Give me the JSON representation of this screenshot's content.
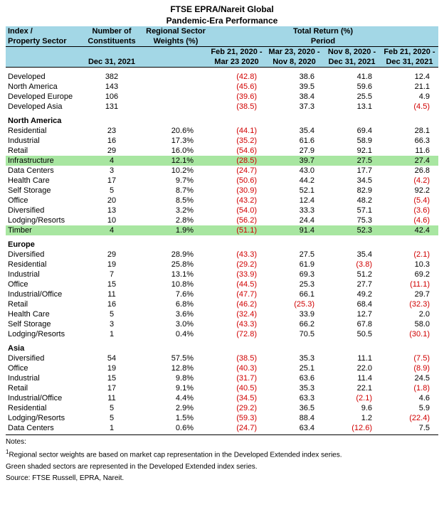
{
  "title_line1": "FTSE EPRA/Nareit Global",
  "title_line2": "Pandemic-Era Performance",
  "colors": {
    "header_bg": "#a3d7e6",
    "highlight_bg": "#a8e6a1",
    "negative_text": "#d00000",
    "text": "#000000",
    "background": "#ffffff",
    "border": "#000000"
  },
  "header": {
    "col0_l1": "Index /",
    "col0_l2": "Property Sector",
    "col1_l1": "Number of",
    "col1_l2": "Constituents",
    "col1_l3": "Dec 31, 2021",
    "col2_l1": "Regional Sector",
    "col2_l2": "Weights (%)",
    "tr_l1": "Total Return (%)",
    "tr_l2": "Period",
    "p1a": "Feb 21, 2020 -",
    "p1b": "Mar 23 2020",
    "p2a": "Mar 23, 2020 -",
    "p2b": "Nov 8, 2020",
    "p3a": "Nov 8, 2020 -",
    "p3b": "Dec 31, 2021",
    "p4a": "Feb 21, 2020 -",
    "p4b": "Dec 31, 2021"
  },
  "groups": [
    {
      "label": null,
      "rows": [
        {
          "name": "Developed",
          "n": "382",
          "w": "",
          "hl": false,
          "p": [
            {
              "v": "(42.8)",
              "neg": true
            },
            {
              "v": "38.6",
              "neg": false
            },
            {
              "v": "41.8",
              "neg": false
            },
            {
              "v": "12.4",
              "neg": false
            }
          ]
        },
        {
          "name": "North America",
          "n": "143",
          "w": "",
          "hl": false,
          "p": [
            {
              "v": "(45.6)",
              "neg": true
            },
            {
              "v": "39.5",
              "neg": false
            },
            {
              "v": "59.6",
              "neg": false
            },
            {
              "v": "21.1",
              "neg": false
            }
          ]
        },
        {
          "name": "Developed Europe",
          "n": "106",
          "w": "",
          "hl": false,
          "p": [
            {
              "v": "(39.6)",
              "neg": true
            },
            {
              "v": "38.4",
              "neg": false
            },
            {
              "v": "25.5",
              "neg": false
            },
            {
              "v": "4.9",
              "neg": false
            }
          ]
        },
        {
          "name": "Developed Asia",
          "n": "131",
          "w": "",
          "hl": false,
          "p": [
            {
              "v": "(38.5)",
              "neg": true
            },
            {
              "v": "37.3",
              "neg": false
            },
            {
              "v": "13.1",
              "neg": false
            },
            {
              "v": "(4.5)",
              "neg": true
            }
          ]
        }
      ]
    },
    {
      "label": "North America",
      "rows": [
        {
          "name": "Residential",
          "n": "23",
          "w": "20.6%",
          "hl": false,
          "p": [
            {
              "v": "(44.1)",
              "neg": true
            },
            {
              "v": "35.4",
              "neg": false
            },
            {
              "v": "69.4",
              "neg": false
            },
            {
              "v": "28.1",
              "neg": false
            }
          ]
        },
        {
          "name": "Industrial",
          "n": "16",
          "w": "17.3%",
          "hl": false,
          "p": [
            {
              "v": "(35.2)",
              "neg": true
            },
            {
              "v": "61.6",
              "neg": false
            },
            {
              "v": "58.9",
              "neg": false
            },
            {
              "v": "66.3",
              "neg": false
            }
          ]
        },
        {
          "name": "Retail",
          "n": "29",
          "w": "16.0%",
          "hl": false,
          "p": [
            {
              "v": "(54.6)",
              "neg": true
            },
            {
              "v": "27.9",
              "neg": false
            },
            {
              "v": "92.1",
              "neg": false
            },
            {
              "v": "11.6",
              "neg": false
            }
          ]
        },
        {
          "name": "Infrastructure",
          "n": "4",
          "w": "12.1%",
          "hl": true,
          "p": [
            {
              "v": "(28.5)",
              "neg": true
            },
            {
              "v": "39.7",
              "neg": false
            },
            {
              "v": "27.5",
              "neg": false
            },
            {
              "v": "27.4",
              "neg": false
            }
          ]
        },
        {
          "name": "Data Centers",
          "n": "3",
          "w": "10.2%",
          "hl": false,
          "p": [
            {
              "v": "(24.7)",
              "neg": true
            },
            {
              "v": "43.0",
              "neg": false
            },
            {
              "v": "17.7",
              "neg": false
            },
            {
              "v": "26.8",
              "neg": false
            }
          ]
        },
        {
          "name": "Health Care",
          "n": "17",
          "w": "9.7%",
          "hl": false,
          "p": [
            {
              "v": "(50.6)",
              "neg": true
            },
            {
              "v": "44.2",
              "neg": false
            },
            {
              "v": "34.5",
              "neg": false
            },
            {
              "v": "(4.2)",
              "neg": true
            }
          ]
        },
        {
          "name": "Self Storage",
          "n": "5",
          "w": "8.7%",
          "hl": false,
          "p": [
            {
              "v": "(30.9)",
              "neg": true
            },
            {
              "v": "52.1",
              "neg": false
            },
            {
              "v": "82.9",
              "neg": false
            },
            {
              "v": "92.2",
              "neg": false
            }
          ]
        },
        {
          "name": "Office",
          "n": "20",
          "w": "8.5%",
          "hl": false,
          "p": [
            {
              "v": "(43.2)",
              "neg": true
            },
            {
              "v": "12.4",
              "neg": false
            },
            {
              "v": "48.2",
              "neg": false
            },
            {
              "v": "(5.4)",
              "neg": true
            }
          ]
        },
        {
          "name": "Diversified",
          "n": "13",
          "w": "3.2%",
          "hl": false,
          "p": [
            {
              "v": "(54.0)",
              "neg": true
            },
            {
              "v": "33.3",
              "neg": false
            },
            {
              "v": "57.1",
              "neg": false
            },
            {
              "v": "(3.6)",
              "neg": true
            }
          ]
        },
        {
          "name": "Lodging/Resorts",
          "n": "10",
          "w": "2.8%",
          "hl": false,
          "p": [
            {
              "v": "(56.2)",
              "neg": true
            },
            {
              "v": "24.4",
              "neg": false
            },
            {
              "v": "75.3",
              "neg": false
            },
            {
              "v": "(4.6)",
              "neg": true
            }
          ]
        },
        {
          "name": "Timber",
          "n": "4",
          "w": "1.9%",
          "hl": true,
          "p": [
            {
              "v": "(51.1)",
              "neg": true
            },
            {
              "v": "91.4",
              "neg": false
            },
            {
              "v": "52.3",
              "neg": false
            },
            {
              "v": "42.4",
              "neg": false
            }
          ]
        }
      ]
    },
    {
      "label": "Europe",
      "rows": [
        {
          "name": "Diversified",
          "n": "29",
          "w": "28.9%",
          "hl": false,
          "p": [
            {
              "v": "(43.3)",
              "neg": true
            },
            {
              "v": "27.5",
              "neg": false
            },
            {
              "v": "35.4",
              "neg": false
            },
            {
              "v": "(2.1)",
              "neg": true
            }
          ]
        },
        {
          "name": "Residential",
          "n": "19",
          "w": "25.8%",
          "hl": false,
          "p": [
            {
              "v": "(29.2)",
              "neg": true
            },
            {
              "v": "61.9",
              "neg": false
            },
            {
              "v": "(3.8)",
              "neg": true
            },
            {
              "v": "10.3",
              "neg": false
            }
          ]
        },
        {
          "name": "Industrial",
          "n": "7",
          "w": "13.1%",
          "hl": false,
          "p": [
            {
              "v": "(33.9)",
              "neg": true
            },
            {
              "v": "69.3",
              "neg": false
            },
            {
              "v": "51.2",
              "neg": false
            },
            {
              "v": "69.2",
              "neg": false
            }
          ]
        },
        {
          "name": "Office",
          "n": "15",
          "w": "10.8%",
          "hl": false,
          "p": [
            {
              "v": "(44.5)",
              "neg": true
            },
            {
              "v": "25.3",
              "neg": false
            },
            {
              "v": "27.7",
              "neg": false
            },
            {
              "v": "(11.1)",
              "neg": true
            }
          ]
        },
        {
          "name": "Industrial/Office",
          "n": "11",
          "w": "7.6%",
          "hl": false,
          "p": [
            {
              "v": "(47.7)",
              "neg": true
            },
            {
              "v": "66.1",
              "neg": false
            },
            {
              "v": "49.2",
              "neg": false
            },
            {
              "v": "29.7",
              "neg": false
            }
          ]
        },
        {
          "name": "Retail",
          "n": "16",
          "w": "6.8%",
          "hl": false,
          "p": [
            {
              "v": "(46.2)",
              "neg": true
            },
            {
              "v": "(25.3)",
              "neg": true
            },
            {
              "v": "68.4",
              "neg": false
            },
            {
              "v": "(32.3)",
              "neg": true
            }
          ]
        },
        {
          "name": "Health Care",
          "n": "5",
          "w": "3.6%",
          "hl": false,
          "p": [
            {
              "v": "(32.4)",
              "neg": true
            },
            {
              "v": "33.9",
              "neg": false
            },
            {
              "v": "12.7",
              "neg": false
            },
            {
              "v": "2.0",
              "neg": false
            }
          ]
        },
        {
          "name": "Self Storage",
          "n": "3",
          "w": "3.0%",
          "hl": false,
          "p": [
            {
              "v": "(43.3)",
              "neg": true
            },
            {
              "v": "66.2",
              "neg": false
            },
            {
              "v": "67.8",
              "neg": false
            },
            {
              "v": "58.0",
              "neg": false
            }
          ]
        },
        {
          "name": "Lodging/Resorts",
          "n": "1",
          "w": "0.4%",
          "hl": false,
          "p": [
            {
              "v": "(72.8)",
              "neg": true
            },
            {
              "v": "70.5",
              "neg": false
            },
            {
              "v": "50.5",
              "neg": false
            },
            {
              "v": "(30.1)",
              "neg": true
            }
          ]
        }
      ]
    },
    {
      "label": "Asia",
      "rows": [
        {
          "name": "Diversified",
          "n": "54",
          "w": "57.5%",
          "hl": false,
          "p": [
            {
              "v": "(38.5)",
              "neg": true
            },
            {
              "v": "35.3",
              "neg": false
            },
            {
              "v": "11.1",
              "neg": false
            },
            {
              "v": "(7.5)",
              "neg": true
            }
          ]
        },
        {
          "name": "Office",
          "n": "19",
          "w": "12.8%",
          "hl": false,
          "p": [
            {
              "v": "(40.3)",
              "neg": true
            },
            {
              "v": "25.1",
              "neg": false
            },
            {
              "v": "22.0",
              "neg": false
            },
            {
              "v": "(8.9)",
              "neg": true
            }
          ]
        },
        {
          "name": "Industrial",
          "n": "15",
          "w": "9.8%",
          "hl": false,
          "p": [
            {
              "v": "(31.7)",
              "neg": true
            },
            {
              "v": "63.6",
              "neg": false
            },
            {
              "v": "11.4",
              "neg": false
            },
            {
              "v": "24.5",
              "neg": false
            }
          ]
        },
        {
          "name": "Retail",
          "n": "17",
          "w": "9.1%",
          "hl": false,
          "p": [
            {
              "v": "(40.5)",
              "neg": true
            },
            {
              "v": "35.3",
              "neg": false
            },
            {
              "v": "22.1",
              "neg": false
            },
            {
              "v": "(1.8)",
              "neg": true
            }
          ]
        },
        {
          "name": "Industrial/Office",
          "n": "11",
          "w": "4.4%",
          "hl": false,
          "p": [
            {
              "v": "(34.5)",
              "neg": true
            },
            {
              "v": "63.3",
              "neg": false
            },
            {
              "v": "(2.1)",
              "neg": true
            },
            {
              "v": "4.6",
              "neg": false
            }
          ]
        },
        {
          "name": "Residential",
          "n": "5",
          "w": "2.9%",
          "hl": false,
          "p": [
            {
              "v": "(29.2)",
              "neg": true
            },
            {
              "v": "36.5",
              "neg": false
            },
            {
              "v": "9.6",
              "neg": false
            },
            {
              "v": "5.9",
              "neg": false
            }
          ]
        },
        {
          "name": "Lodging/Resorts",
          "n": "5",
          "w": "1.5%",
          "hl": false,
          "p": [
            {
              "v": "(59.3)",
              "neg": true
            },
            {
              "v": "88.4",
              "neg": false
            },
            {
              "v": "1.2",
              "neg": false
            },
            {
              "v": "(22.4)",
              "neg": true
            }
          ]
        },
        {
          "name": "Data Centers",
          "n": "1",
          "w": "0.6%",
          "hl": false,
          "p": [
            {
              "v": "(24.7)",
              "neg": true
            },
            {
              "v": "63.4",
              "neg": false
            },
            {
              "v": "(12.6)",
              "neg": true
            },
            {
              "v": "7.5",
              "neg": false
            }
          ]
        }
      ]
    }
  ],
  "notes": {
    "label": "Notes:",
    "n1_sup": "1",
    "n1": "Regional sector weights are based on market cap representation in the Developed Extended index series.",
    "n2": "Green shaded sectors are represented in the Developed Extended index series.",
    "n3": "Source: FTSE Russell, EPRA, Nareit."
  }
}
